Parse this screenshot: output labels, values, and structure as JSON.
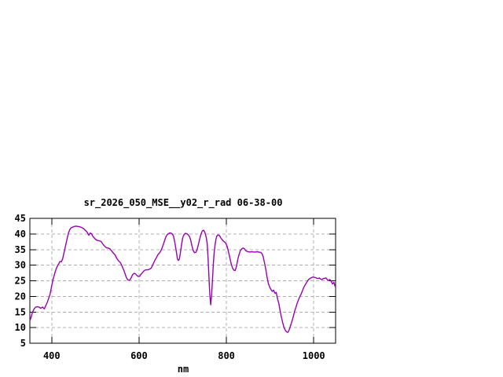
{
  "page": {
    "background": "#ffffff"
  },
  "colors": {
    "line": "#9900b3",
    "grid": "#b0b0b0",
    "border": "#000000",
    "text": "#000000",
    "background": "#ffffff"
  },
  "chart_data": {
    "type": "line",
    "title": "sr_2026_050_MSE__y02_r_rad 06-38-00",
    "xlabel": "nm",
    "ylabel": "",
    "xlim": [
      350,
      1050
    ],
    "ylim": [
      5,
      45
    ],
    "xticks": [
      400,
      600,
      800,
      1000
    ],
    "yticks": [
      5,
      10,
      15,
      20,
      25,
      30,
      35,
      40,
      45
    ],
    "grid": true,
    "grid_style": "dashed-gray",
    "legend_position": "none",
    "series": [
      {
        "name": "sr_2026_050_MSE__y02_r_rad",
        "color": "#9900b3",
        "points": [
          [
            350,
            12.2
          ],
          [
            353,
            13.4
          ],
          [
            356,
            14.9
          ],
          [
            360,
            16.1
          ],
          [
            364,
            16.6
          ],
          [
            368,
            16.7
          ],
          [
            372,
            16.5
          ],
          [
            375,
            16.2
          ],
          [
            379,
            16.6
          ],
          [
            383,
            16.0
          ],
          [
            387,
            17.2
          ],
          [
            390,
            18.1
          ],
          [
            393,
            19.4
          ],
          [
            396,
            20.6
          ],
          [
            400,
            23.4
          ],
          [
            403,
            25.4
          ],
          [
            407,
            27.4
          ],
          [
            410,
            28.7
          ],
          [
            413,
            29.7
          ],
          [
            416,
            30.4
          ],
          [
            419,
            31.2
          ],
          [
            422,
            31.1
          ],
          [
            425,
            32.0
          ],
          [
            428,
            33.8
          ],
          [
            431,
            35.7
          ],
          [
            434,
            37.7
          ],
          [
            438,
            40.1
          ],
          [
            441,
            41.3
          ],
          [
            444,
            41.9
          ],
          [
            448,
            42.2
          ],
          [
            452,
            42.4
          ],
          [
            456,
            42.5
          ],
          [
            460,
            42.4
          ],
          [
            464,
            42.3
          ],
          [
            468,
            42.1
          ],
          [
            472,
            41.8
          ],
          [
            476,
            41.3
          ],
          [
            481,
            40.6
          ],
          [
            485,
            39.6
          ],
          [
            488,
            40.3
          ],
          [
            491,
            40.1
          ],
          [
            494,
            39.3
          ],
          [
            497,
            38.8
          ],
          [
            501,
            38.2
          ],
          [
            505,
            37.9
          ],
          [
            509,
            37.8
          ],
          [
            513,
            37.6
          ],
          [
            517,
            36.8
          ],
          [
            521,
            36.1
          ],
          [
            525,
            35.6
          ],
          [
            529,
            35.5
          ],
          [
            533,
            35.3
          ],
          [
            537,
            34.6
          ],
          [
            541,
            33.9
          ],
          [
            545,
            33.3
          ],
          [
            549,
            32.2
          ],
          [
            553,
            31.4
          ],
          [
            557,
            30.9
          ],
          [
            561,
            29.7
          ],
          [
            565,
            28.4
          ],
          [
            568,
            27.3
          ],
          [
            571,
            26.0
          ],
          [
            574,
            25.3
          ],
          [
            577,
            25.2
          ],
          [
            580,
            25.4
          ],
          [
            583,
            26.3
          ],
          [
            586,
            27.1
          ],
          [
            589,
            27.4
          ],
          [
            592,
            27.2
          ],
          [
            595,
            26.7
          ],
          [
            598,
            26.4
          ],
          [
            601,
            26.4
          ],
          [
            604,
            27.0
          ],
          [
            607,
            27.5
          ],
          [
            610,
            28.0
          ],
          [
            613,
            28.4
          ],
          [
            616,
            28.5
          ],
          [
            619,
            28.5
          ],
          [
            622,
            28.6
          ],
          [
            625,
            28.8
          ],
          [
            628,
            29.1
          ],
          [
            631,
            30.0
          ],
          [
            634,
            30.9
          ],
          [
            637,
            31.8
          ],
          [
            640,
            32.5
          ],
          [
            643,
            33.3
          ],
          [
            646,
            33.8
          ],
          [
            649,
            34.4
          ],
          [
            652,
            35.2
          ],
          [
            655,
            36.4
          ],
          [
            658,
            37.7
          ],
          [
            661,
            38.9
          ],
          [
            664,
            39.7
          ],
          [
            667,
            40.1
          ],
          [
            670,
            40.3
          ],
          [
            673,
            40.3
          ],
          [
            676,
            40.0
          ],
          [
            679,
            39.3
          ],
          [
            682,
            37.2
          ],
          [
            685,
            34.6
          ],
          [
            688,
            32.0
          ],
          [
            690,
            31.5
          ],
          [
            692,
            31.9
          ],
          [
            694,
            33.4
          ],
          [
            697,
            36.2
          ],
          [
            700,
            38.8
          ],
          [
            703,
            39.8
          ],
          [
            706,
            40.2
          ],
          [
            709,
            40.1
          ],
          [
            712,
            39.8
          ],
          [
            715,
            39.3
          ],
          [
            718,
            38.2
          ],
          [
            721,
            36.2
          ],
          [
            724,
            34.7
          ],
          [
            727,
            34.0
          ],
          [
            730,
            34.1
          ],
          [
            733,
            35.0
          ],
          [
            736,
            36.7
          ],
          [
            739,
            38.5
          ],
          [
            742,
            40.0
          ],
          [
            745,
            41.0
          ],
          [
            748,
            41.2
          ],
          [
            751,
            40.4
          ],
          [
            754,
            38.8
          ],
          [
            756,
            37.0
          ],
          [
            758,
            32.5
          ],
          [
            760,
            26.5
          ],
          [
            762,
            20.5
          ],
          [
            764,
            17.3
          ],
          [
            766,
            20.3
          ],
          [
            768,
            25.0
          ],
          [
            770,
            30.2
          ],
          [
            772,
            34.0
          ],
          [
            774,
            36.4
          ],
          [
            776,
            38.2
          ],
          [
            778,
            39.3
          ],
          [
            781,
            39.7
          ],
          [
            784,
            39.5
          ],
          [
            787,
            38.8
          ],
          [
            790,
            38.2
          ],
          [
            793,
            37.7
          ],
          [
            796,
            37.4
          ],
          [
            799,
            36.9
          ],
          [
            802,
            35.9
          ],
          [
            805,
            34.1
          ],
          [
            808,
            32.3
          ],
          [
            811,
            30.4
          ],
          [
            814,
            29.1
          ],
          [
            817,
            28.4
          ],
          [
            820,
            28.3
          ],
          [
            823,
            29.6
          ],
          [
            826,
            31.8
          ],
          [
            829,
            33.4
          ],
          [
            832,
            34.7
          ],
          [
            835,
            35.2
          ],
          [
            838,
            35.5
          ],
          [
            841,
            35.3
          ],
          [
            844,
            34.7
          ],
          [
            847,
            34.4
          ],
          [
            850,
            34.3
          ],
          [
            854,
            34.2
          ],
          [
            858,
            34.3
          ],
          [
            862,
            34.2
          ],
          [
            866,
            34.2
          ],
          [
            870,
            34.3
          ],
          [
            874,
            34.2
          ],
          [
            878,
            34.1
          ],
          [
            881,
            33.8
          ],
          [
            884,
            32.8
          ],
          [
            887,
            30.9
          ],
          [
            890,
            28.8
          ],
          [
            893,
            26.2
          ],
          [
            896,
            24.2
          ],
          [
            899,
            23.0
          ],
          [
            902,
            22.2
          ],
          [
            905,
            21.6
          ],
          [
            908,
            22.0
          ],
          [
            911,
            21.0
          ],
          [
            914,
            21.3
          ],
          [
            917,
            19.3
          ],
          [
            920,
            17.7
          ],
          [
            923,
            15.4
          ],
          [
            926,
            13.3
          ],
          [
            929,
            11.5
          ],
          [
            932,
            10.0
          ],
          [
            935,
            9.1
          ],
          [
            938,
            8.6
          ],
          [
            941,
            8.5
          ],
          [
            944,
            9.4
          ],
          [
            947,
            10.7
          ],
          [
            950,
            12.0
          ],
          [
            953,
            13.4
          ],
          [
            956,
            15.2
          ],
          [
            959,
            16.4
          ],
          [
            962,
            17.8
          ],
          [
            965,
            18.9
          ],
          [
            968,
            19.9
          ],
          [
            971,
            20.7
          ],
          [
            974,
            21.8
          ],
          [
            977,
            22.8
          ],
          [
            980,
            23.6
          ],
          [
            983,
            24.3
          ],
          [
            986,
            25.0
          ],
          [
            989,
            25.5
          ],
          [
            992,
            25.8
          ],
          [
            995,
            26.0
          ],
          [
            998,
            26.2
          ],
          [
            1001,
            26.1
          ],
          [
            1004,
            26.0
          ],
          [
            1007,
            25.8
          ],
          [
            1010,
            25.7
          ],
          [
            1013,
            25.9
          ],
          [
            1016,
            25.5
          ],
          [
            1019,
            25.4
          ],
          [
            1022,
            25.7
          ],
          [
            1025,
            25.8
          ],
          [
            1028,
            25.9
          ],
          [
            1031,
            25.4
          ],
          [
            1034,
            25.1
          ],
          [
            1037,
            25.4
          ],
          [
            1040,
            24.8
          ],
          [
            1043,
            24.0
          ],
          [
            1046,
            24.5
          ],
          [
            1048,
            23.6
          ],
          [
            1050,
            22.8
          ]
        ]
      }
    ]
  }
}
